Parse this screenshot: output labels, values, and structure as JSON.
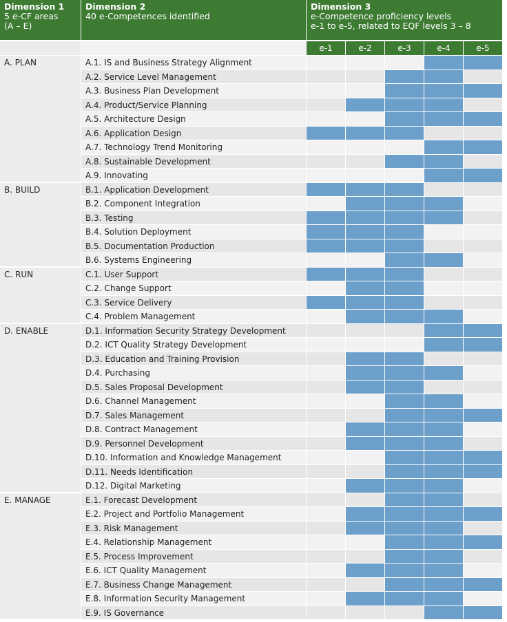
{
  "header": {
    "dimension1": {
      "title": "Dimension 1",
      "lines": [
        "5 e-CF areas",
        "(A – E)"
      ]
    },
    "dimension2": {
      "title": "Dimension 2",
      "lines": [
        "40 e-Competences identified"
      ]
    },
    "dimension3": {
      "title": "Dimension 3",
      "lines": [
        "e-Competence proficiency levels",
        "e-1 to e-5, related to EQF levels 3 – 8"
      ]
    }
  },
  "levels": [
    "e-1",
    "e-2",
    "e-3",
    "e-4",
    "e-5"
  ],
  "areas": [
    {
      "name": "A. PLAN",
      "competences": [
        {
          "name": "A.1. IS and Business Strategy Alignment",
          "levels": [
            4,
            5
          ]
        },
        {
          "name": "A.2. Service Level Management",
          "levels": [
            3,
            4
          ]
        },
        {
          "name": "A.3. Business Plan Development",
          "levels": [
            3,
            4,
            5
          ]
        },
        {
          "name": "A.4. Product/Service Planning",
          "levels": [
            2,
            3,
            4
          ]
        },
        {
          "name": "A.5. Architecture Design",
          "levels": [
            3,
            4,
            5
          ]
        },
        {
          "name": "A.6. Application Design",
          "levels": [
            1,
            2,
            3
          ]
        },
        {
          "name": "A.7. Technology Trend Monitoring",
          "levels": [
            4,
            5
          ]
        },
        {
          "name": "A.8. Sustainable Development",
          "levels": [
            3,
            4
          ]
        },
        {
          "name": "A.9. Innovating",
          "levels": [
            4,
            5
          ]
        }
      ]
    },
    {
      "name": "B. BUILD",
      "competences": [
        {
          "name": "B.1. Application Development",
          "levels": [
            1,
            2,
            3
          ]
        },
        {
          "name": "B.2. Component Integration",
          "levels": [
            2,
            3,
            4
          ]
        },
        {
          "name": "B.3. Testing",
          "levels": [
            1,
            2,
            3,
            4
          ]
        },
        {
          "name": "B.4. Solution Deployment",
          "levels": [
            1,
            2,
            3
          ]
        },
        {
          "name": "B.5. Documentation Production",
          "levels": [
            1,
            2,
            3
          ]
        },
        {
          "name": "B.6. Systems Engineering",
          "levels": [
            3,
            4
          ]
        }
      ]
    },
    {
      "name": "C. RUN",
      "competences": [
        {
          "name": "C.1. User Support",
          "levels": [
            1,
            2,
            3
          ]
        },
        {
          "name": "C.2. Change Support",
          "levels": [
            2,
            3
          ]
        },
        {
          "name": "C.3. Service Delivery",
          "levels": [
            1,
            2,
            3
          ]
        },
        {
          "name": "C.4. Problem Management",
          "levels": [
            2,
            3,
            4
          ]
        }
      ]
    },
    {
      "name": "D. ENABLE",
      "competences": [
        {
          "name": "D.1. Information Security Strategy Development",
          "levels": [
            4,
            5
          ]
        },
        {
          "name": "D.2. ICT Quality Strategy Development",
          "levels": [
            4,
            5
          ]
        },
        {
          "name": "D.3. Education and Training Provision",
          "levels": [
            2,
            3
          ]
        },
        {
          "name": "D.4. Purchasing",
          "levels": [
            2,
            3,
            4
          ]
        },
        {
          "name": "D.5. Sales Proposal Development",
          "levels": [
            2,
            3
          ]
        },
        {
          "name": "D.6. Channel Management",
          "levels": [
            3,
            4
          ]
        },
        {
          "name": "D.7. Sales Management",
          "levels": [
            3,
            4,
            5
          ]
        },
        {
          "name": "D.8. Contract Management",
          "levels": [
            2,
            3,
            4
          ]
        },
        {
          "name": "D.9. Personnel Development",
          "levels": [
            2,
            3,
            4
          ]
        },
        {
          "name": "D.10. Information and Knowledge Management",
          "levels": [
            3,
            4,
            5
          ]
        },
        {
          "name": "D.11. Needs Identification",
          "levels": [
            3,
            4,
            5
          ]
        },
        {
          "name": "D.12. Digital Marketing",
          "levels": [
            2,
            3,
            4
          ]
        }
      ]
    },
    {
      "name": "E. MANAGE",
      "competences": [
        {
          "name": "E.1. Forecast Development",
          "levels": [
            3,
            4
          ]
        },
        {
          "name": "E.2. Project and Portfolio Management",
          "levels": [
            2,
            3,
            4,
            5
          ]
        },
        {
          "name": "E.3. Risk Management",
          "levels": [
            2,
            3,
            4
          ]
        },
        {
          "name": "E.4. Relationship Management",
          "levels": [
            3,
            4,
            5
          ]
        },
        {
          "name": "E.5. Process Improvement",
          "levels": [
            3,
            4
          ]
        },
        {
          "name": "E.6. ICT Quality Management",
          "levels": [
            2,
            3,
            4
          ]
        },
        {
          "name": "E.7. Business Change Management",
          "levels": [
            3,
            4,
            5
          ]
        },
        {
          "name": "E.8. Information Security Management",
          "levels": [
            2,
            3,
            4
          ]
        },
        {
          "name": "E.9. IS Governance",
          "levels": [
            4,
            5
          ]
        }
      ]
    }
  ]
}
